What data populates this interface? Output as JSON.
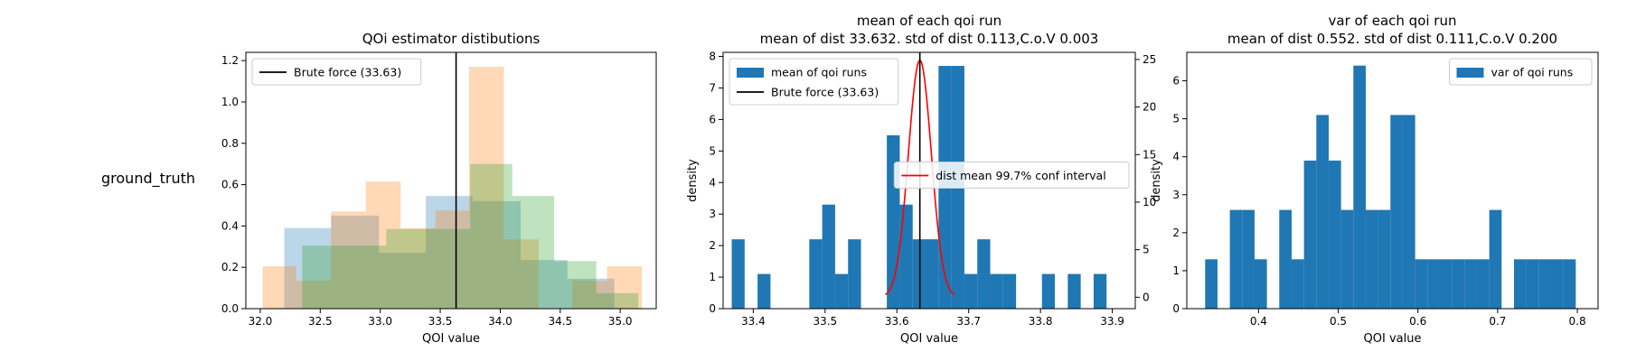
{
  "row_label": "ground_truth",
  "colors": {
    "blue": "#1f77b4",
    "orange": "#ff7f0e",
    "green": "#2ca02c",
    "red": "#ff0000",
    "black": "#000000"
  },
  "chart_data": [
    {
      "type": "histogram",
      "title": "QOi estimator distibutions",
      "xlabel": "QOI value",
      "ylabel": "",
      "xlim": [
        31.88,
        35.3
      ],
      "ylim": [
        0,
        1.24
      ],
      "xticks": [
        32.0,
        32.5,
        33.0,
        33.5,
        34.0,
        34.5,
        35.0
      ],
      "xtick_labels": [
        "32.0",
        "32.5",
        "33.0",
        "33.5",
        "34.0",
        "34.5",
        "35.0"
      ],
      "yticks": [
        0.0,
        0.2,
        0.4,
        0.6,
        0.8,
        1.0,
        1.2
      ],
      "ytick_labels": [
        "0.0",
        "0.2",
        "0.4",
        "0.6",
        "0.8",
        "1.0",
        "1.2"
      ],
      "legend": {
        "position": "upper-left",
        "entries": [
          {
            "label": "Brute force (33.63)",
            "kind": "line",
            "color": "#000000"
          }
        ]
      },
      "vline": 33.632,
      "series": [
        {
          "color": "#1f77b4",
          "opacity": 0.3,
          "bins": [
            [
              32.2,
              32.59,
              0.39
            ],
            [
              32.59,
              32.99,
              0.45
            ],
            [
              32.99,
              33.38,
              0.27
            ],
            [
              33.38,
              33.77,
              0.545
            ],
            [
              33.77,
              34.17,
              0.52
            ],
            [
              34.17,
              34.56,
              0.235
            ],
            [
              34.56,
              34.95,
              0.145
            ]
          ]
        },
        {
          "color": "#ff7f0e",
          "opacity": 0.3,
          "bins": [
            [
              32.02,
              32.3,
              0.205
            ],
            [
              32.3,
              32.59,
              0.135
            ],
            [
              32.59,
              32.88,
              0.47
            ],
            [
              32.88,
              33.17,
              0.615
            ],
            [
              33.17,
              33.46,
              0.39
            ],
            [
              33.46,
              33.74,
              0.475
            ],
            [
              33.74,
              34.03,
              1.17
            ],
            [
              34.03,
              34.32,
              0.335
            ],
            [
              34.32,
              34.6,
              0.0
            ],
            [
              34.6,
              34.89,
              0.135
            ],
            [
              34.89,
              35.18,
              0.205
            ]
          ]
        },
        {
          "color": "#2ca02c",
          "opacity": 0.3,
          "bins": [
            [
              32.35,
              32.7,
              0.305
            ],
            [
              32.7,
              33.05,
              0.305
            ],
            [
              33.05,
              33.4,
              0.385
            ],
            [
              33.4,
              33.75,
              0.385
            ],
            [
              33.75,
              34.1,
              0.7
            ],
            [
              34.1,
              34.45,
              0.545
            ],
            [
              34.45,
              34.8,
              0.23
            ],
            [
              34.8,
              35.15,
              0.075
            ]
          ]
        }
      ]
    },
    {
      "type": "histogram",
      "title": "mean of each qoi run",
      "subtitle": "mean of dist 33.632. std of dist 0.113,C.o.V 0.003",
      "xlabel": "QOI value",
      "ylabel": "density",
      "xlim": [
        33.358,
        33.932
      ],
      "ylim": [
        0,
        8.13
      ],
      "y2lim": [
        -1.2,
        25.75
      ],
      "xticks": [
        33.4,
        33.5,
        33.6,
        33.7,
        33.8,
        33.9
      ],
      "xtick_labels": [
        "33.4",
        "33.5",
        "33.6",
        "33.7",
        "33.8",
        "33.9"
      ],
      "yticks": [
        0,
        1,
        2,
        3,
        4,
        5,
        6,
        7,
        8
      ],
      "ytick_labels": [
        "0",
        "1",
        "2",
        "3",
        "4",
        "5",
        "6",
        "7",
        "8"
      ],
      "y2ticks": [
        0,
        5,
        10,
        15,
        20,
        25
      ],
      "y2tick_labels": [
        "0",
        "5",
        "10",
        "15",
        "20",
        "25"
      ],
      "legend": {
        "position": "upper-left",
        "entries": [
          {
            "label": "mean of qoi runs",
            "kind": "patch",
            "color": "#1f77b4"
          },
          {
            "label": "Brute force (33.63)",
            "kind": "line",
            "color": "#000000"
          }
        ]
      },
      "legend2": {
        "position": "center-right",
        "entries": [
          {
            "label": "dist mean 99.7% conf interval",
            "kind": "line",
            "color": "#ff0000"
          }
        ]
      },
      "vline": 33.632,
      "series": [
        {
          "name": "mean of qoi runs",
          "color": "#1f77b4",
          "bin_start": 33.37,
          "bin_width": 0.018,
          "values": [
            2.2,
            0,
            1.1,
            0,
            0,
            0,
            2.2,
            3.3,
            1.1,
            2.2,
            0,
            0,
            5.5,
            3.3,
            2.2,
            2.2,
            7.7,
            7.7,
            1.1,
            2.2,
            1.1,
            1.1,
            0,
            0,
            1.1,
            0,
            1.1,
            0,
            1.1,
            0
          ]
        }
      ],
      "curve": {
        "label": "dist mean 99.7% conf interval",
        "color": "#ff0000",
        "mean": 33.632,
        "std": 0.016,
        "x_range": [
          33.584,
          33.68
        ]
      }
    },
    {
      "type": "histogram",
      "title": "var of each qoi run",
      "subtitle": "mean of dist 0.552. std of dist 0.111,C.o.V 0.200",
      "xlabel": "QOI value",
      "ylabel": "density",
      "xlim": [
        0.31,
        0.826
      ],
      "ylim": [
        0,
        6.75
      ],
      "xticks": [
        0.4,
        0.5,
        0.6,
        0.7,
        0.8
      ],
      "xtick_labels": [
        "0.4",
        "0.5",
        "0.6",
        "0.7",
        "0.8"
      ],
      "yticks": [
        0,
        1,
        2,
        3,
        4,
        5,
        6
      ],
      "ytick_labels": [
        "0",
        "1",
        "2",
        "3",
        "4",
        "5",
        "6"
      ],
      "legend": {
        "position": "upper-right",
        "entries": [
          {
            "label": "var of qoi runs",
            "kind": "patch",
            "color": "#1f77b4"
          }
        ]
      },
      "series": [
        {
          "name": "var of qoi runs",
          "color": "#1f77b4",
          "bin_start": 0.333,
          "bin_width": 0.0155,
          "values": [
            1.3,
            0,
            2.6,
            2.6,
            1.3,
            0,
            2.6,
            1.3,
            3.9,
            5.1,
            3.9,
            2.6,
            6.4,
            2.6,
            2.6,
            5.1,
            5.1,
            1.3,
            1.3,
            1.3,
            1.3,
            1.3,
            1.3,
            2.6,
            0,
            1.3,
            1.3,
            1.3,
            1.3,
            1.3
          ]
        }
      ]
    }
  ]
}
